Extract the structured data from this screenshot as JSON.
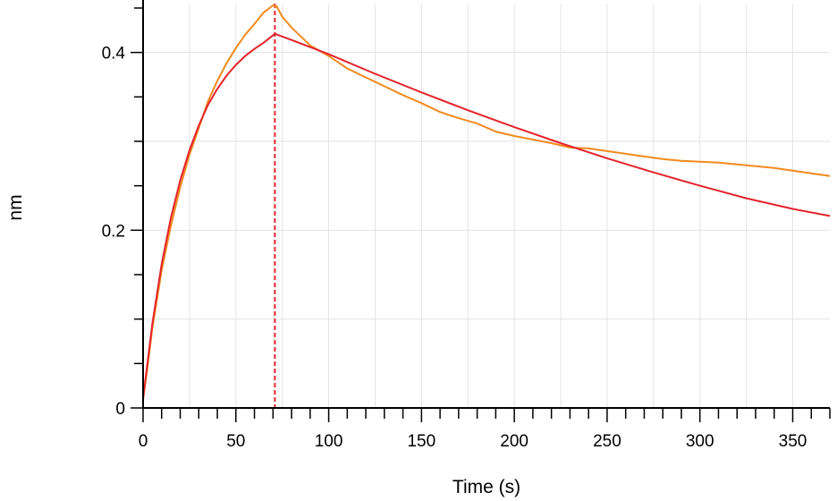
{
  "chart_data": {
    "type": "line",
    "title": "",
    "xlabel": "Time (s)",
    "ylabel": "nm",
    "xlim": [
      0,
      370
    ],
    "ylim": [
      0,
      0.455
    ],
    "x_ticks": [
      "0",
      "50",
      "100",
      "150",
      "200",
      "250",
      "300",
      "350"
    ],
    "y_ticks": [
      "0",
      "0.2",
      "0.4"
    ],
    "grid": true,
    "legend": "none",
    "markers": [
      {
        "x": 0,
        "color": "#8b0000",
        "style": "dashed"
      },
      {
        "x": 71,
        "color": "#e3242b",
        "style": "dashed"
      }
    ],
    "series": [
      {
        "color": "#f28a1e",
        "x": [
          0,
          2,
          5,
          10,
          15,
          20,
          25,
          30,
          35,
          40,
          45,
          50,
          55,
          60,
          65,
          70,
          72,
          75,
          80,
          85,
          90,
          95,
          100,
          110,
          120,
          130,
          140,
          150,
          160,
          170,
          180,
          190,
          200,
          210,
          220,
          230,
          240,
          250,
          260,
          270,
          280,
          290,
          300,
          310,
          320,
          330,
          340,
          350,
          360,
          370
        ],
        "y": [
          0.01,
          0.04,
          0.09,
          0.155,
          0.205,
          0.248,
          0.285,
          0.315,
          0.345,
          0.368,
          0.388,
          0.405,
          0.42,
          0.432,
          0.445,
          0.453,
          0.452,
          0.44,
          0.428,
          0.418,
          0.408,
          0.402,
          0.396,
          0.382,
          0.372,
          0.362,
          0.352,
          0.343,
          0.333,
          0.326,
          0.32,
          0.311,
          0.306,
          0.302,
          0.298,
          0.293,
          0.292,
          0.289,
          0.286,
          0.283,
          0.28,
          0.278,
          0.277,
          0.276,
          0.274,
          0.272,
          0.27,
          0.267,
          0.264,
          0.261
        ]
      },
      {
        "color": "#e3242b",
        "x": [
          0,
          2,
          5,
          10,
          15,
          20,
          25,
          30,
          35,
          40,
          45,
          50,
          55,
          60,
          65,
          71,
          80,
          100,
          125,
          150,
          175,
          200,
          225,
          250,
          275,
          300,
          325,
          350,
          370
        ],
        "y": [
          0.01,
          0.045,
          0.095,
          0.162,
          0.214,
          0.256,
          0.29,
          0.318,
          0.341,
          0.359,
          0.374,
          0.386,
          0.396,
          0.404,
          0.411,
          0.421,
          0.414,
          0.398,
          0.376,
          0.355,
          0.335,
          0.316,
          0.298,
          0.281,
          0.265,
          0.25,
          0.236,
          0.224,
          0.216
        ]
      }
    ]
  }
}
